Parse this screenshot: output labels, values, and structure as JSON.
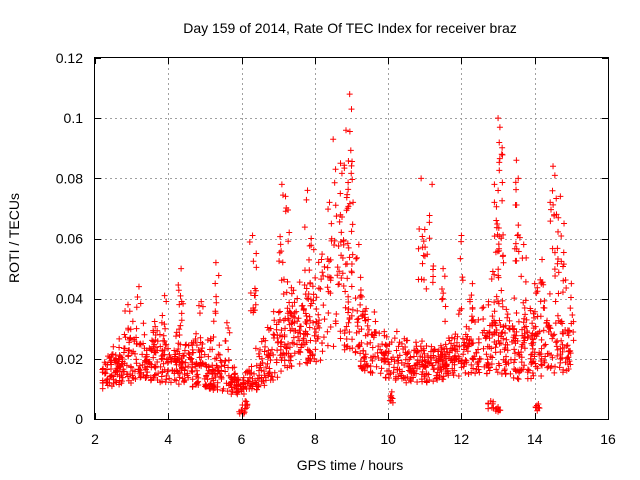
{
  "chart_data": {
    "type": "scatter",
    "title": "Day 159 of 2014, Rate Of TEC Index for receiver braz",
    "xlabel": "GPS time / hours",
    "ylabel": "ROTI / TECUs",
    "xlim": [
      2,
      16
    ],
    "ylim": [
      0,
      0.12
    ],
    "xticks": [
      2,
      4,
      6,
      8,
      10,
      12,
      14,
      16
    ],
    "xtick_labels": [
      "2",
      "4",
      "6",
      "8",
      "10",
      "12",
      "14",
      "16"
    ],
    "yticks": [
      0,
      0.02,
      0.04,
      0.06,
      0.08,
      0.1,
      0.12
    ],
    "ytick_labels": [
      "0",
      "0.02",
      "0.04",
      "0.06",
      "0.08",
      "0.1",
      "0.12"
    ],
    "grid": true,
    "marker": "plus",
    "marker_color": "#ff0000",
    "envelope": {
      "x": [
        2.2,
        2.5,
        3.0,
        3.5,
        4.0,
        4.5,
        5.0,
        5.5,
        5.8,
        6.0,
        6.3,
        6.6,
        7.0,
        7.5,
        8.0,
        8.3,
        8.5,
        8.7,
        8.9,
        9.1,
        9.5,
        10.0,
        10.5,
        11.0,
        11.5,
        12.0,
        12.5,
        13.0,
        13.3,
        13.6,
        14.0,
        14.3,
        14.6,
        15.0
      ],
      "y_low": [
        0.01,
        0.011,
        0.012,
        0.012,
        0.012,
        0.011,
        0.01,
        0.009,
        0.008,
        0.008,
        0.009,
        0.011,
        0.014,
        0.017,
        0.018,
        0.02,
        0.022,
        0.024,
        0.022,
        0.018,
        0.015,
        0.013,
        0.012,
        0.012,
        0.013,
        0.014,
        0.015,
        0.015,
        0.014,
        0.013,
        0.013,
        0.014,
        0.015,
        0.015
      ],
      "y_high": [
        0.02,
        0.026,
        0.034,
        0.036,
        0.032,
        0.03,
        0.03,
        0.026,
        0.018,
        0.015,
        0.022,
        0.03,
        0.04,
        0.048,
        0.055,
        0.065,
        0.072,
        0.078,
        0.07,
        0.05,
        0.04,
        0.032,
        0.028,
        0.026,
        0.028,
        0.034,
        0.04,
        0.048,
        0.046,
        0.042,
        0.042,
        0.046,
        0.046,
        0.036
      ]
    },
    "peaks": [
      {
        "x": 2.5,
        "y": 0.024
      },
      {
        "x": 2.9,
        "y": 0.038
      },
      {
        "x": 3.2,
        "y": 0.044
      },
      {
        "x": 3.9,
        "y": 0.041
      },
      {
        "x": 4.3,
        "y": 0.038
      },
      {
        "x": 4.35,
        "y": 0.05
      },
      {
        "x": 4.9,
        "y": 0.039
      },
      {
        "x": 5.3,
        "y": 0.052
      },
      {
        "x": 5.6,
        "y": 0.032
      },
      {
        "x": 6.0,
        "y": 0.003
      },
      {
        "x": 6.3,
        "y": 0.061
      },
      {
        "x": 6.4,
        "y": 0.055
      },
      {
        "x": 7.1,
        "y": 0.078
      },
      {
        "x": 7.2,
        "y": 0.074
      },
      {
        "x": 7.3,
        "y": 0.062
      },
      {
        "x": 7.8,
        "y": 0.076
      },
      {
        "x": 7.9,
        "y": 0.06
      },
      {
        "x": 8.4,
        "y": 0.072
      },
      {
        "x": 8.5,
        "y": 0.093
      },
      {
        "x": 8.7,
        "y": 0.085
      },
      {
        "x": 8.85,
        "y": 0.096
      },
      {
        "x": 8.95,
        "y": 0.108
      },
      {
        "x": 9.0,
        "y": 0.103
      },
      {
        "x": 9.2,
        "y": 0.058
      },
      {
        "x": 10.9,
        "y": 0.08
      },
      {
        "x": 11.0,
        "y": 0.063
      },
      {
        "x": 11.2,
        "y": 0.078
      },
      {
        "x": 11.5,
        "y": 0.05
      },
      {
        "x": 12.0,
        "y": 0.061
      },
      {
        "x": 12.3,
        "y": 0.045
      },
      {
        "x": 12.9,
        "y": 0.078
      },
      {
        "x": 12.95,
        "y": 0.066
      },
      {
        "x": 13.0,
        "y": 0.1
      },
      {
        "x": 13.05,
        "y": 0.097
      },
      {
        "x": 13.1,
        "y": 0.088
      },
      {
        "x": 13.5,
        "y": 0.086
      },
      {
        "x": 13.55,
        "y": 0.08
      },
      {
        "x": 13.7,
        "y": 0.058
      },
      {
        "x": 14.0,
        "y": 0.045
      },
      {
        "x": 14.2,
        "y": 0.053
      },
      {
        "x": 14.5,
        "y": 0.084
      },
      {
        "x": 14.55,
        "y": 0.081
      },
      {
        "x": 14.7,
        "y": 0.074
      },
      {
        "x": 14.8,
        "y": 0.065
      },
      {
        "x": 15.0,
        "y": 0.045
      },
      {
        "x": 13.0,
        "y": 0.004
      },
      {
        "x": 14.1,
        "y": 0.005
      },
      {
        "x": 6.1,
        "y": 0.006
      },
      {
        "x": 12.8,
        "y": 0.006
      },
      {
        "x": 10.1,
        "y": 0.009
      }
    ]
  }
}
